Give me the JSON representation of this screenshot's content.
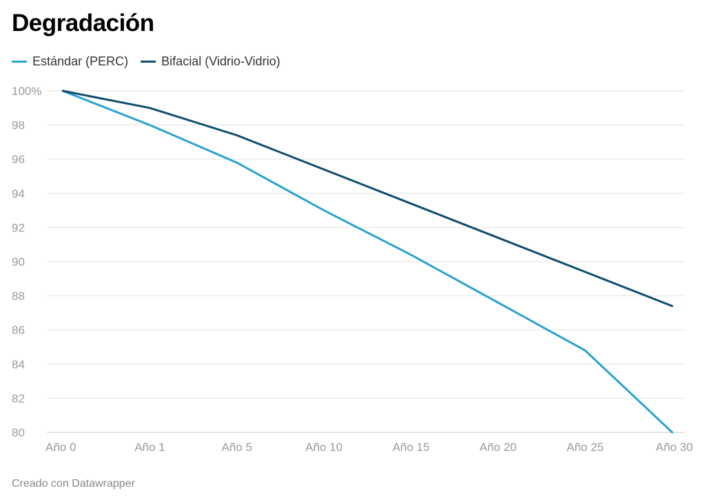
{
  "chart_data": {
    "type": "line",
    "title": "Degradación",
    "categories": [
      "Año 0",
      "Año 1",
      "Año 5",
      "Año 10",
      "Año 15",
      "Año 20",
      "Año 25",
      "Año 30"
    ],
    "series": [
      {
        "name": "Estándar (PERC)",
        "color": "#2aa2d0",
        "values": [
          100,
          98.0,
          95.8,
          93.0,
          90.4,
          87.6,
          84.8,
          80.0
        ]
      },
      {
        "name": "Bifacial (Vidrio-Vidrio)",
        "color": "#0f4c6e",
        "values": [
          100,
          99.0,
          97.4,
          95.4,
          93.4,
          91.4,
          89.4,
          87.4
        ]
      }
    ],
    "ylim": [
      80,
      100
    ],
    "yticks": [
      100,
      98,
      96,
      94,
      92,
      90,
      88,
      86,
      84,
      82,
      80
    ],
    "ytick_labels": [
      "100%",
      "98",
      "96",
      "94",
      "92",
      "90",
      "88",
      "86",
      "84",
      "82",
      "80"
    ],
    "xlabel": "",
    "ylabel": "",
    "grid": true,
    "legend_position": "top-left"
  },
  "footer": {
    "credit": "Creado con Datawrapper"
  }
}
